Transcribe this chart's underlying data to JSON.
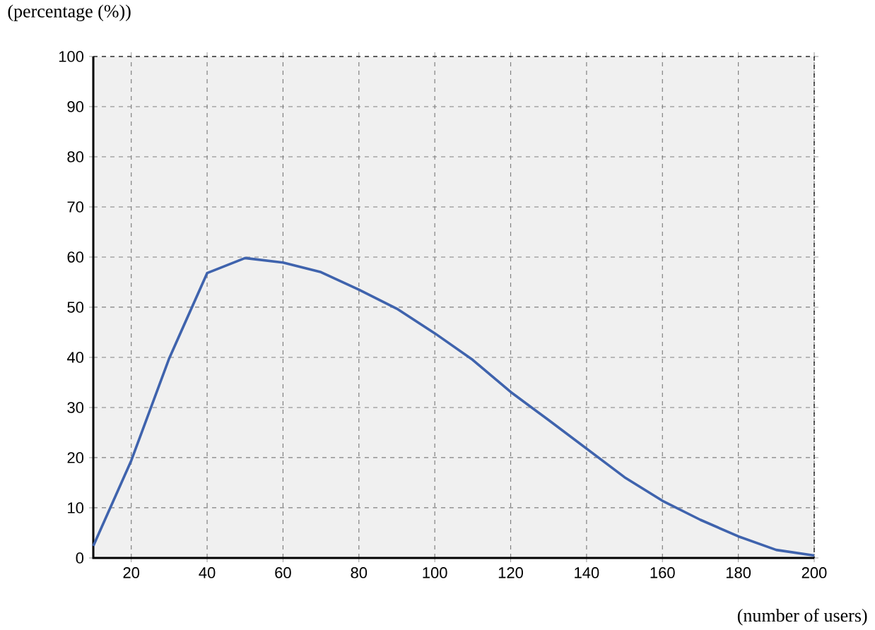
{
  "chart_data": {
    "type": "line",
    "ylabel": "(percentage (%))",
    "xlabel": "(number of users)",
    "x": [
      10,
      20,
      30,
      40,
      50,
      60,
      70,
      80,
      90,
      100,
      110,
      120,
      130,
      140,
      150,
      160,
      170,
      180,
      190,
      200
    ],
    "series": [
      {
        "color": "#3f63ad",
        "values": [
          2.4,
          19.4,
          39.8,
          56.8,
          59.8,
          58.9,
          57,
          53.5,
          49.7,
          44.8,
          39.5,
          33.1,
          27.5,
          21.8,
          16.1,
          11.4,
          7.6,
          4.3,
          1.6,
          0.5
        ]
      }
    ],
    "xlim": [
      10,
      200
    ],
    "ylim": [
      0,
      100
    ],
    "xticks": [
      20,
      40,
      60,
      80,
      100,
      120,
      140,
      160,
      180,
      200
    ],
    "yticks": [
      0,
      10,
      20,
      30,
      40,
      50,
      60,
      70,
      80,
      90,
      100
    ],
    "grid": true,
    "marker": "none",
    "line_style": "solid"
  }
}
